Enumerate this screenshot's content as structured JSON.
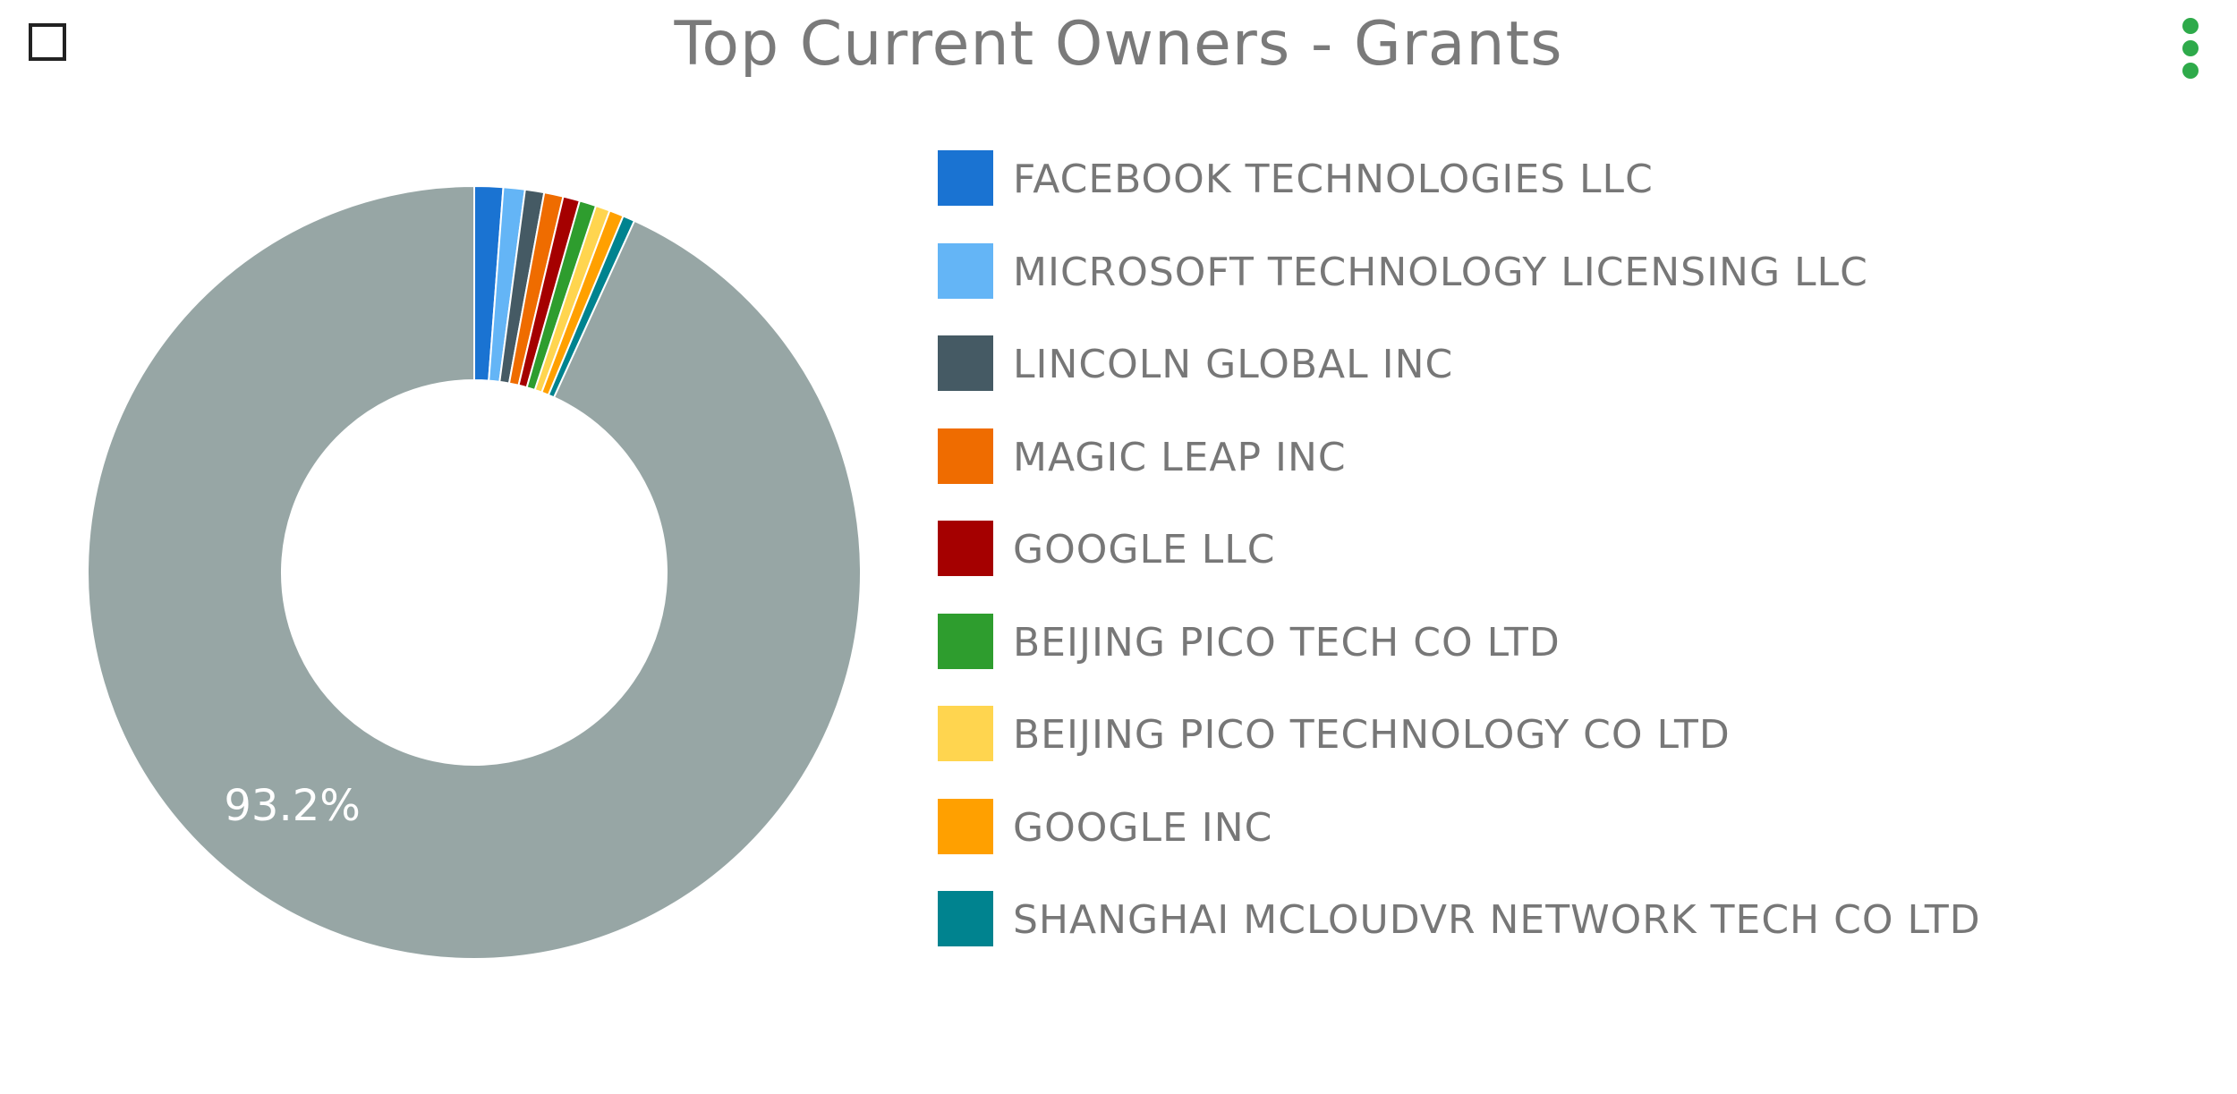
{
  "chart_data": {
    "type": "pie",
    "title": "Top Current Owners - Grants",
    "donut": true,
    "legend_position": "right",
    "slices": [
      {
        "label": "FACEBOOK TECHNOLOGIES LLC",
        "value": 1.2,
        "color": "#1a73d2"
      },
      {
        "label": "MICROSOFT TECHNOLOGY LICENSING LLC",
        "value": 0.9,
        "color": "#64b5f6"
      },
      {
        "label": "LINCOLN GLOBAL INC",
        "value": 0.8,
        "color": "#455a64"
      },
      {
        "label": "MAGIC LEAP INC",
        "value": 0.8,
        "color": "#ef6c00"
      },
      {
        "label": "GOOGLE LLC",
        "value": 0.7,
        "color": "#a50000"
      },
      {
        "label": "BEIJING PICO TECH CO LTD",
        "value": 0.7,
        "color": "#2e9d2e"
      },
      {
        "label": "BEIJING PICO TECHNOLOGY CO LTD",
        "value": 0.6,
        "color": "#ffd54f"
      },
      {
        "label": "GOOGLE INC",
        "value": 0.6,
        "color": "#ffa000"
      },
      {
        "label": "SHANGHAI MCLOUDVR NETWORK TECH CO LTD",
        "value": 0.5,
        "color": "#00838f"
      },
      {
        "label": "",
        "value": 93.2,
        "color": "#97a6a5",
        "data_label": "93.2%"
      }
    ]
  },
  "colors": {
    "title": "#7a7a7a",
    "legend_text": "#777777",
    "menu": "#2eaa4a"
  },
  "icons": {
    "checkbox": "checkbox-icon",
    "menu": "kebab-menu-icon"
  }
}
